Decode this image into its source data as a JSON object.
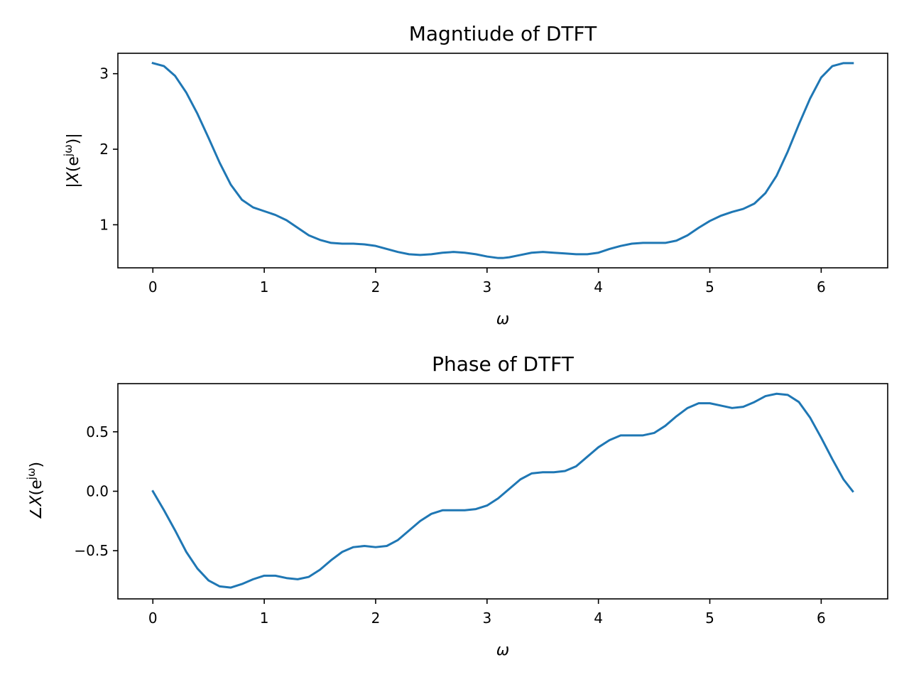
{
  "chart_data": [
    {
      "type": "line",
      "title": "Magntiude of DTFT",
      "xlabel": "ω",
      "ylabel": "|X(e^{jω})|",
      "xlim": [
        -0.314,
        6.597
      ],
      "ylim": [
        0.43,
        3.27
      ],
      "xticks": [
        0,
        1,
        2,
        3,
        4,
        5,
        6
      ],
      "yticks": [
        1,
        2,
        3
      ],
      "grid": false,
      "series": [
        {
          "color": "#1f77b4",
          "x": [
            0,
            0.1,
            0.2,
            0.3,
            0.4,
            0.5,
            0.6,
            0.7,
            0.8,
            0.9,
            1.0,
            1.1,
            1.2,
            1.3,
            1.4,
            1.5,
            1.6,
            1.7,
            1.8,
            1.9,
            2.0,
            2.1,
            2.2,
            2.3,
            2.4,
            2.5,
            2.6,
            2.7,
            2.8,
            2.9,
            3.0,
            3.1,
            3.1416,
            3.2,
            3.3,
            3.4,
            3.5,
            3.6,
            3.7,
            3.8,
            3.9,
            4.0,
            4.1,
            4.2,
            4.3,
            4.4,
            4.5,
            4.6,
            4.7,
            4.8,
            4.9,
            5.0,
            5.1,
            5.2,
            5.3,
            5.4,
            5.5,
            5.6,
            5.7,
            5.8,
            5.9,
            6.0,
            6.1,
            6.2,
            6.2832
          ],
          "y": [
            3.14,
            3.1,
            2.97,
            2.75,
            2.47,
            2.15,
            1.82,
            1.53,
            1.33,
            1.23,
            1.18,
            1.13,
            1.06,
            0.96,
            0.86,
            0.8,
            0.76,
            0.75,
            0.75,
            0.74,
            0.72,
            0.68,
            0.64,
            0.61,
            0.6,
            0.61,
            0.63,
            0.64,
            0.63,
            0.61,
            0.58,
            0.56,
            0.56,
            0.57,
            0.6,
            0.63,
            0.64,
            0.63,
            0.62,
            0.61,
            0.61,
            0.63,
            0.68,
            0.72,
            0.75,
            0.76,
            0.76,
            0.76,
            0.79,
            0.86,
            0.96,
            1.05,
            1.12,
            1.17,
            1.21,
            1.28,
            1.42,
            1.65,
            1.97,
            2.33,
            2.67,
            2.95,
            3.1,
            3.14,
            3.14
          ]
        }
      ]
    },
    {
      "type": "line",
      "title": "Phase of DTFT",
      "xlabel": "ω",
      "ylabel": "∠X(e^{jω})",
      "xlim": [
        -0.314,
        6.597
      ],
      "ylim": [
        -0.905,
        0.905
      ],
      "xticks": [
        0,
        1,
        2,
        3,
        4,
        5,
        6
      ],
      "yticks": [
        -0.5,
        0.0,
        0.5
      ],
      "grid": false,
      "series": [
        {
          "color": "#1f77b4",
          "x": [
            0,
            0.1,
            0.2,
            0.3,
            0.4,
            0.5,
            0.6,
            0.7,
            0.8,
            0.9,
            1.0,
            1.1,
            1.2,
            1.3,
            1.4,
            1.5,
            1.6,
            1.7,
            1.8,
            1.9,
            2.0,
            2.1,
            2.2,
            2.3,
            2.4,
            2.5,
            2.6,
            2.7,
            2.8,
            2.9,
            3.0,
            3.1,
            3.2,
            3.3,
            3.4,
            3.5,
            3.6,
            3.7,
            3.8,
            3.9,
            4.0,
            4.1,
            4.2,
            4.3,
            4.4,
            4.5,
            4.6,
            4.7,
            4.8,
            4.9,
            5.0,
            5.1,
            5.2,
            5.3,
            5.4,
            5.5,
            5.6,
            5.7,
            5.8,
            5.9,
            6.0,
            6.1,
            6.2,
            6.2832
          ],
          "y": [
            0.0,
            -0.16,
            -0.33,
            -0.51,
            -0.65,
            -0.75,
            -0.8,
            -0.81,
            -0.78,
            -0.74,
            -0.71,
            -0.71,
            -0.73,
            -0.74,
            -0.72,
            -0.66,
            -0.58,
            -0.51,
            -0.47,
            -0.46,
            -0.47,
            -0.46,
            -0.41,
            -0.33,
            -0.25,
            -0.19,
            -0.16,
            -0.16,
            -0.16,
            -0.15,
            -0.12,
            -0.06,
            0.02,
            0.1,
            0.15,
            0.16,
            0.16,
            0.17,
            0.21,
            0.29,
            0.37,
            0.43,
            0.47,
            0.47,
            0.47,
            0.49,
            0.55,
            0.63,
            0.7,
            0.74,
            0.74,
            0.72,
            0.7,
            0.71,
            0.75,
            0.8,
            0.82,
            0.81,
            0.75,
            0.62,
            0.45,
            0.27,
            0.1,
            0.0
          ]
        }
      ]
    }
  ]
}
